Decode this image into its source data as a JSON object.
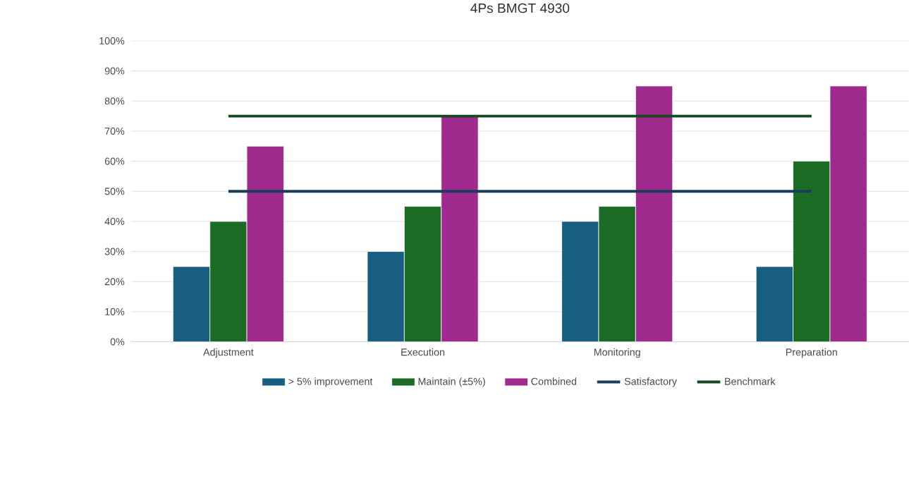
{
  "chart_data": {
    "type": "bar",
    "title": "4Ps BMGT 4930",
    "categories": [
      "Adjustment",
      "Execution",
      "Monitoring",
      "Preparation"
    ],
    "series": [
      {
        "name": "> 5% improvement",
        "color": "#175e80",
        "values": [
          25,
          30,
          40,
          25
        ]
      },
      {
        "name": "Maintain (±5%)",
        "color": "#1c6b25",
        "values": [
          40,
          45,
          45,
          60
        ]
      },
      {
        "name": "Combined",
        "color": "#9f2b8f",
        "values": [
          65,
          75,
          85,
          85
        ]
      },
      {
        "name": "Satisfactory",
        "type": "line",
        "color": "#1b3d5c",
        "values": [
          50,
          50,
          50,
          50
        ]
      },
      {
        "name": "Benchmark",
        "type": "line",
        "color": "#154a1c",
        "values": [
          75,
          75,
          75,
          75
        ]
      }
    ],
    "ylim": [
      0,
      100
    ],
    "yticks": [
      {
        "value": 0,
        "label": "0%"
      },
      {
        "value": 10,
        "label": "10%"
      },
      {
        "value": 20,
        "label": "20%"
      },
      {
        "value": 30,
        "label": "30%"
      },
      {
        "value": 40,
        "label": "40%"
      },
      {
        "value": 50,
        "label": "50%"
      },
      {
        "value": 60,
        "label": "60%"
      },
      {
        "value": 70,
        "label": "70%"
      },
      {
        "value": 80,
        "label": "80%"
      },
      {
        "value": 90,
        "label": "90%"
      },
      {
        "value": 100,
        "label": "100%"
      }
    ],
    "grid": "y",
    "legend": "bottom",
    "marker": "none",
    "line_style": "solid"
  }
}
